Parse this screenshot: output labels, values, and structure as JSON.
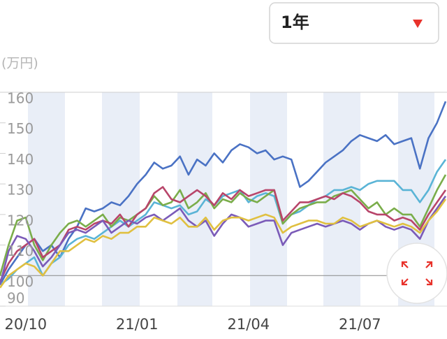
{
  "dropdown": {
    "label": "1年"
  },
  "chart_data": {
    "type": "line",
    "unit_label": "(万円)",
    "categories": [
      null,
      null,
      null,
      "20/10",
      null,
      null,
      null,
      null,
      null,
      null,
      null,
      null,
      null,
      null,
      null,
      null,
      "21/01",
      null,
      null,
      null,
      null,
      null,
      null,
      null,
      null,
      null,
      null,
      null,
      null,
      "21/04",
      null,
      null,
      null,
      null,
      null,
      null,
      null,
      null,
      null,
      null,
      null,
      null,
      "21/07",
      null,
      null,
      null,
      null,
      null,
      null,
      null,
      null,
      null,
      null
    ],
    "ylim": [
      90,
      160
    ],
    "yticks": [
      90,
      100,
      110,
      120,
      130,
      140,
      150,
      160
    ],
    "reference_line": 100,
    "series": [
      {
        "color": "#4a72c4",
        "values": [
          97,
          102,
          106,
          110,
          112,
          108,
          110,
          106,
          112,
          116,
          122,
          121,
          122,
          124,
          123,
          126,
          130,
          133,
          137,
          135,
          136,
          139,
          133,
          138,
          136,
          140,
          137,
          141,
          143,
          142,
          140,
          141,
          138,
          139,
          138,
          129,
          131,
          134,
          137,
          139,
          141,
          144,
          146,
          145,
          144,
          146,
          143,
          144,
          145,
          135,
          145,
          150,
          157
        ]
      },
      {
        "color": "#5ab4d6",
        "values": [
          97,
          99,
          102,
          104,
          106,
          100,
          104,
          106,
          110,
          112,
          113,
          112,
          114,
          116,
          118,
          116,
          118,
          120,
          124,
          123,
          122,
          123,
          120,
          121,
          125,
          123,
          126,
          127,
          128,
          124,
          126,
          127,
          126,
          117,
          120,
          121,
          123,
          125,
          126,
          128,
          128,
          129,
          128,
          130,
          131,
          131,
          131,
          128,
          128,
          124,
          128,
          134,
          138
        ]
      },
      {
        "color": "#7aad4a",
        "values": [
          100,
          110,
          118,
          119,
          110,
          105,
          110,
          114,
          117,
          118,
          116,
          118,
          120,
          116,
          119,
          118,
          120,
          122,
          126,
          123,
          124,
          128,
          122,
          124,
          127,
          122,
          125,
          124,
          127,
          125,
          124,
          126,
          128,
          117,
          120,
          122,
          123,
          124,
          124,
          126,
          127,
          128,
          125,
          122,
          124,
          120,
          122,
          120,
          120,
          116,
          122,
          128,
          133
        ]
      },
      {
        "color": "#b8456a",
        "values": [
          98,
          104,
          108,
          110,
          112,
          106,
          108,
          110,
          115,
          116,
          115,
          117,
          118,
          117,
          120,
          116,
          120,
          122,
          127,
          129,
          125,
          124,
          126,
          128,
          126,
          123,
          127,
          125,
          128,
          126,
          127,
          128,
          128,
          118,
          121,
          124,
          124,
          125,
          126,
          125,
          127,
          126,
          124,
          121,
          120,
          120,
          118,
          119,
          118,
          115,
          120,
          124,
          128
        ]
      },
      {
        "color": "#7b5bb8",
        "values": [
          97,
          108,
          113,
          112,
          108,
          103,
          106,
          110,
          114,
          115,
          114,
          116,
          118,
          114,
          116,
          118,
          117,
          119,
          120,
          118,
          120,
          122,
          118,
          116,
          118,
          113,
          117,
          120,
          119,
          116,
          117,
          118,
          118,
          110,
          114,
          115,
          116,
          117,
          116,
          117,
          118,
          117,
          115,
          117,
          118,
          116,
          115,
          116,
          115,
          112,
          118,
          122,
          126
        ]
      },
      {
        "color": "#e0c040",
        "values": [
          96,
          100,
          102,
          104,
          103,
          100,
          104,
          108,
          108,
          110,
          112,
          111,
          113,
          112,
          114,
          114,
          116,
          116,
          119,
          118,
          117,
          119,
          116,
          116,
          119,
          115,
          118,
          119,
          119,
          118,
          119,
          120,
          119,
          114,
          116,
          117,
          118,
          118,
          117,
          117,
          119,
          118,
          116,
          117,
          118,
          117,
          116,
          117,
          116,
          114,
          118,
          121,
          125
        ]
      }
    ]
  }
}
